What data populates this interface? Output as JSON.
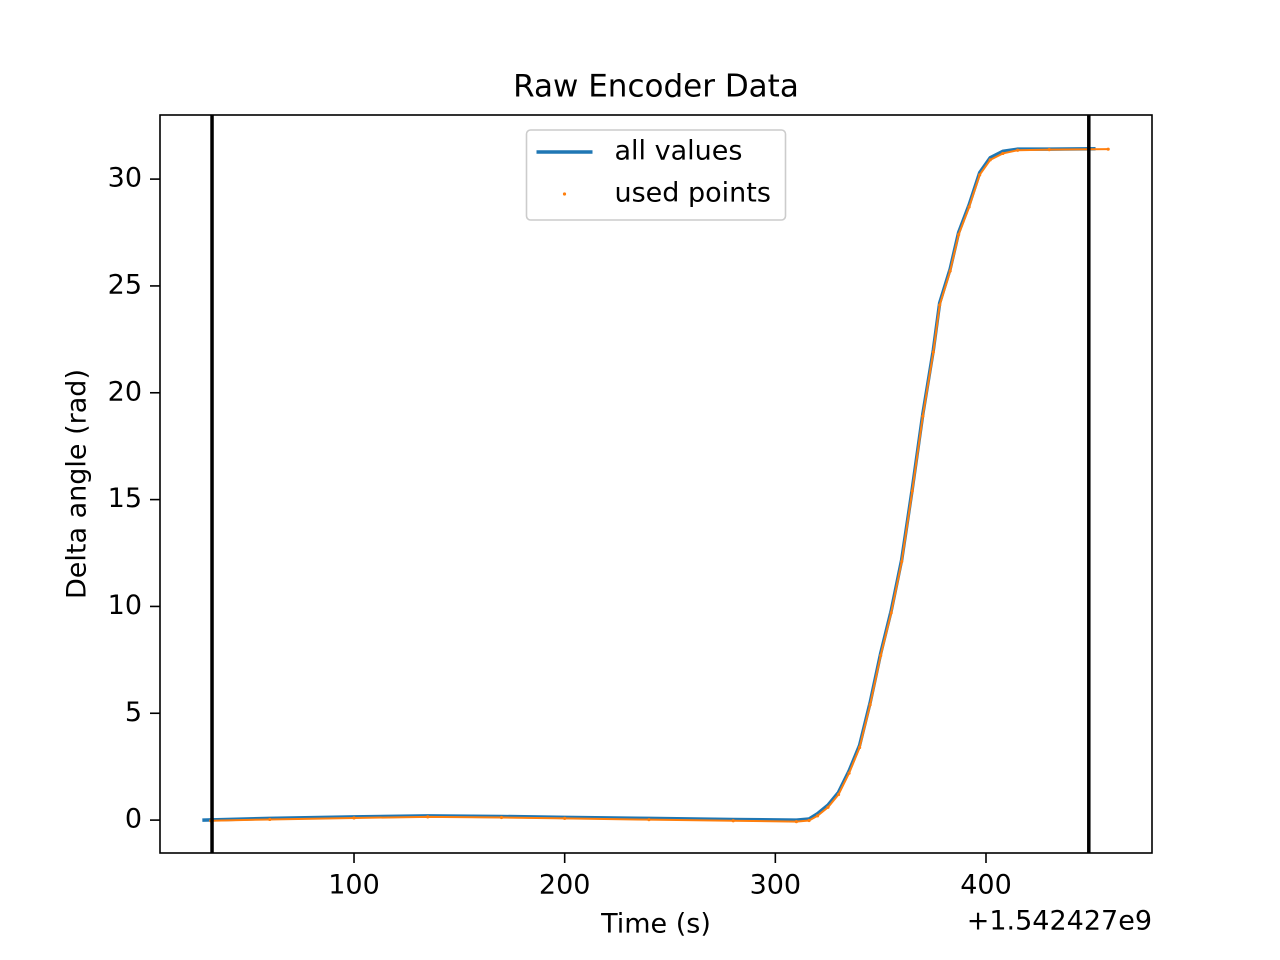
{
  "chart_data": {
    "type": "line",
    "title": "Raw Encoder Data",
    "x_label": "Time (s)",
    "y_label": "Delta angle (rad)",
    "x_offset_label": "+1.542427e9",
    "xlim": [
      7.9,
      478.8
    ],
    "ylim": [
      -1.54,
      33.0
    ],
    "xticks": [
      100,
      200,
      300,
      400
    ],
    "yticks": [
      0,
      5,
      10,
      15,
      20,
      25,
      30
    ],
    "vlines": [
      32.6,
      448.8
    ],
    "vline_color": "#000000",
    "legend": "upper center",
    "series": [
      {
        "name": "all values",
        "style": "line",
        "color": "#1f77b4",
        "x": [
          28,
          60,
          100,
          135,
          170,
          200,
          240,
          280,
          310,
          316,
          320,
          325,
          330,
          335,
          340,
          345,
          350,
          355,
          360,
          365,
          370,
          375,
          378,
          383,
          387,
          392,
          397,
          402,
          408,
          415,
          430,
          452
        ],
        "values": [
          0.0,
          0.08,
          0.15,
          0.2,
          0.17,
          0.13,
          0.08,
          0.03,
          0.0,
          0.05,
          0.3,
          0.7,
          1.3,
          2.3,
          3.5,
          5.5,
          7.8,
          9.8,
          12.2,
          15.5,
          19.0,
          22.0,
          24.2,
          25.8,
          27.5,
          28.8,
          30.3,
          31.0,
          31.3,
          31.4,
          31.4,
          31.42
        ]
      },
      {
        "name": "used points",
        "style": "points",
        "color": "#ff7f0e",
        "x": [
          32,
          60,
          100,
          135,
          170,
          200,
          240,
          280,
          310,
          316,
          320,
          325,
          330,
          335,
          340,
          345,
          350,
          355,
          360,
          365,
          370,
          375,
          378,
          383,
          387,
          392,
          397,
          402,
          408,
          415,
          430,
          458
        ],
        "values": [
          -0.03,
          0.03,
          0.1,
          0.15,
          0.12,
          0.08,
          0.02,
          -0.03,
          -0.07,
          -0.02,
          0.2,
          0.6,
          1.2,
          2.2,
          3.4,
          5.4,
          7.7,
          9.7,
          12.1,
          15.4,
          18.9,
          21.9,
          24.1,
          25.7,
          27.4,
          28.7,
          30.2,
          30.9,
          31.2,
          31.35,
          31.38,
          31.4
        ]
      }
    ]
  }
}
